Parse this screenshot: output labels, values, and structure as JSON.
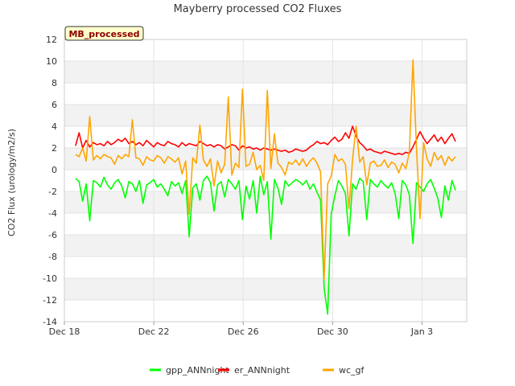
{
  "chart_data": {
    "type": "line",
    "title": "Mayberry processed CO2 Fluxes",
    "ylabel": "CO2 Flux (urology/m2/s)",
    "xlabel": "",
    "tag": "MB_processed",
    "ylim": [
      -14,
      12
    ],
    "yticks": [
      -14,
      -12,
      -10,
      -8,
      -6,
      -4,
      -2,
      0,
      2,
      4,
      6,
      8,
      10,
      12
    ],
    "xlim": [
      "2023-12-18",
      "2024-01-05"
    ],
    "xticks": [
      {
        "date": "2023-12-18",
        "label": "Dec 18"
      },
      {
        "date": "2023-12-22",
        "label": "Dec 22"
      },
      {
        "date": "2023-12-26",
        "label": "Dec 26"
      },
      {
        "date": "2023-12-30",
        "label": "Dec 30"
      },
      {
        "date": "2024-01-03",
        "label": "Jan 3"
      }
    ],
    "grid": true,
    "legend_position": "bottom",
    "series": [
      {
        "name": "gpp_ANNnight",
        "color": "#00ff00",
        "start": "2023-12-18T12:00",
        "end": "2024-01-04T12:00",
        "values": [
          -0.8,
          -1.1,
          -2.9,
          -1.3,
          -4.7,
          -1.0,
          -1.2,
          -1.6,
          -0.7,
          -1.4,
          -1.8,
          -1.2,
          -0.9,
          -1.5,
          -2.6,
          -1.1,
          -1.3,
          -2.0,
          -1.0,
          -3.1,
          -1.4,
          -1.2,
          -0.9,
          -1.6,
          -1.3,
          -1.8,
          -2.4,
          -1.1,
          -1.5,
          -1.2,
          -2.2,
          -1.0,
          -6.2,
          -1.7,
          -1.3,
          -2.8,
          -1.0,
          -0.6,
          -1.2,
          -3.8,
          -1.4,
          -1.1,
          -2.5,
          -0.9,
          -1.3,
          -1.8,
          -1.0,
          -4.6,
          -1.5,
          -2.7,
          -1.0,
          -4.0,
          -0.6,
          -2.3,
          -1.1,
          -6.4,
          -0.9,
          -1.7,
          -3.2,
          -1.0,
          -1.5,
          -1.2,
          -0.9,
          -1.1,
          -1.4,
          -1.0,
          -1.8,
          -1.3,
          -2.1,
          -2.8,
          -10.9,
          -13.3,
          -4.1,
          -2.4,
          -1.0,
          -1.5,
          -2.2,
          -6.1,
          -1.3,
          -1.8,
          -0.8,
          -1.1,
          -4.6,
          -0.9,
          -1.3,
          -1.6,
          -1.0,
          -1.4,
          -1.7,
          -1.2,
          -2.2,
          -4.5,
          -1.0,
          -1.4,
          -2.3,
          -6.8,
          -1.2,
          -1.6,
          -2.0,
          -1.3,
          -0.9,
          -1.7,
          -2.6,
          -4.4,
          -1.5,
          -2.8,
          -1.0,
          -1.9
        ]
      },
      {
        "name": "er_ANNnight",
        "color": "#ff0000",
        "start": "2023-12-18T12:00",
        "end": "2024-01-04T12:00",
        "values": [
          2.2,
          3.4,
          2.0,
          2.7,
          2.1,
          2.5,
          2.3,
          2.4,
          2.2,
          2.6,
          2.3,
          2.5,
          2.8,
          2.6,
          2.9,
          2.4,
          2.6,
          2.3,
          2.5,
          2.2,
          2.7,
          2.4,
          2.1,
          2.5,
          2.3,
          2.2,
          2.6,
          2.4,
          2.3,
          2.1,
          2.5,
          2.2,
          2.4,
          2.3,
          2.2,
          2.6,
          2.4,
          2.2,
          2.3,
          2.1,
          2.3,
          2.2,
          1.9,
          2.1,
          2.3,
          2.2,
          1.8,
          2.2,
          2.0,
          2.1,
          1.9,
          2.0,
          1.8,
          2.0,
          1.9,
          1.8,
          1.9,
          1.8,
          1.7,
          1.8,
          1.6,
          1.7,
          1.9,
          1.8,
          1.7,
          1.8,
          2.1,
          2.3,
          2.6,
          2.4,
          2.5,
          2.3,
          2.7,
          3.0,
          2.6,
          2.8,
          3.4,
          2.9,
          4.0,
          3.1,
          2.5,
          2.2,
          1.8,
          1.9,
          1.7,
          1.6,
          1.5,
          1.7,
          1.6,
          1.5,
          1.4,
          1.5,
          1.4,
          1.6,
          1.5,
          2.1,
          2.8,
          3.5,
          2.9,
          2.4,
          2.8,
          3.2,
          2.6,
          3.0,
          2.4,
          2.9,
          3.3,
          2.6
        ]
      },
      {
        "name": "wc_gf",
        "color": "#ffa500",
        "start": "2023-12-18T12:00",
        "end": "2024-01-04T12:00",
        "values": [
          1.4,
          1.2,
          2.0,
          0.8,
          4.9,
          0.9,
          1.3,
          1.0,
          1.4,
          1.2,
          1.1,
          0.5,
          1.3,
          1.0,
          1.4,
          1.2,
          4.6,
          1.1,
          1.0,
          0.4,
          1.2,
          0.9,
          0.8,
          1.3,
          1.1,
          0.6,
          1.2,
          1.0,
          0.7,
          1.1,
          -0.4,
          0.8,
          -4.1,
          1.1,
          0.6,
          4.1,
          0.9,
          0.3,
          1.0,
          -1.5,
          0.8,
          -0.3,
          0.5,
          6.7,
          -0.5,
          0.6,
          0.2,
          7.4,
          0.3,
          0.5,
          1.6,
          0.0,
          0.4,
          -1.0,
          7.3,
          0.1,
          3.3,
          0.6,
          0.2,
          -0.5,
          0.7,
          0.5,
          0.9,
          0.4,
          1.0,
          0.3,
          0.8,
          1.1,
          0.6,
          -0.2,
          -10.1,
          -1.3,
          -0.6,
          1.4,
          0.8,
          1.0,
          0.5,
          -3.6,
          0.9,
          4.0,
          0.7,
          1.2,
          -1.4,
          0.6,
          0.8,
          0.3,
          0.4,
          0.9,
          0.2,
          0.7,
          0.5,
          -0.3,
          0.6,
          0.1,
          1.6,
          10.1,
          1.9,
          -4.5,
          2.5,
          1.0,
          0.3,
          1.6,
          0.9,
          1.3,
          0.4,
          1.2,
          0.8,
          1.2
        ]
      }
    ]
  }
}
